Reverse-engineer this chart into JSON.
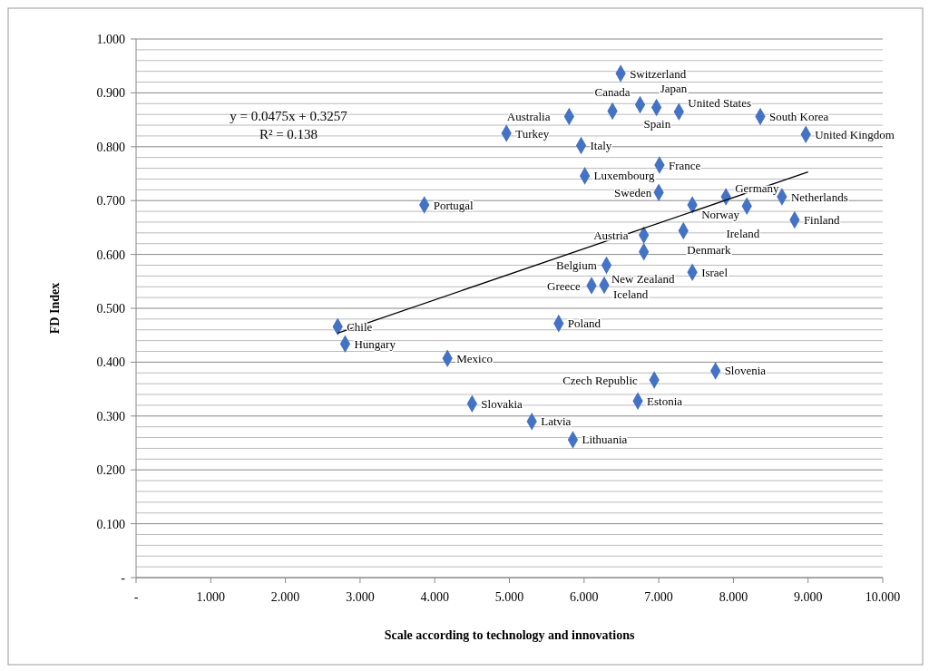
{
  "chart_data": {
    "type": "scatter",
    "xlabel": "Scale according to technology and innovations",
    "ylabel": "FD Index",
    "xlim": [
      0,
      10
    ],
    "ylim": [
      0,
      1
    ],
    "xticks": [
      {
        "value": 0,
        "label": "-"
      },
      {
        "value": 1,
        "label": "1.000"
      },
      {
        "value": 2,
        "label": "2.000"
      },
      {
        "value": 3,
        "label": "3.000"
      },
      {
        "value": 4,
        "label": "4.000"
      },
      {
        "value": 5,
        "label": "5.000"
      },
      {
        "value": 6,
        "label": "6.000"
      },
      {
        "value": 7,
        "label": "7.000"
      },
      {
        "value": 8,
        "label": "8.000"
      },
      {
        "value": 9,
        "label": "9.000"
      },
      {
        "value": 10,
        "label": "10.000"
      }
    ],
    "yticks": [
      {
        "value": 0,
        "label": "-"
      },
      {
        "value": 0.1,
        "label": "0.100"
      },
      {
        "value": 0.2,
        "label": "0.200"
      },
      {
        "value": 0.3,
        "label": "0.300"
      },
      {
        "value": 0.4,
        "label": "0.400"
      },
      {
        "value": 0.5,
        "label": "0.500"
      },
      {
        "value": 0.6,
        "label": "0.600"
      },
      {
        "value": 0.7,
        "label": "0.700"
      },
      {
        "value": 0.8,
        "label": "0.800"
      },
      {
        "value": 0.9,
        "label": "0.900"
      },
      {
        "value": 1,
        "label": "1.000"
      }
    ],
    "grid": "y",
    "marker": "diamond",
    "series": [
      {
        "color": "#4472c4",
        "x": [
          6.49,
          6.75,
          6.97,
          7.27,
          6.38,
          5.8,
          8.36,
          4.96,
          8.97,
          5.96,
          7.01,
          6.01,
          7.0,
          3.86,
          7.45,
          7.9,
          8.18,
          8.65,
          8.82,
          7.33,
          6.8,
          6.8,
          6.3,
          7.45,
          6.1,
          6.27,
          5.66,
          2.7,
          2.8,
          4.17,
          7.76,
          6.94,
          4.5,
          6.72,
          5.3,
          5.85
        ],
        "values": [
          0.936,
          0.878,
          0.873,
          0.865,
          0.866,
          0.856,
          0.856,
          0.825,
          0.823,
          0.802,
          0.766,
          0.746,
          0.715,
          0.692,
          0.692,
          0.707,
          0.69,
          0.707,
          0.664,
          0.644,
          0.636,
          0.605,
          0.58,
          0.567,
          0.542,
          0.543,
          0.472,
          0.466,
          0.434,
          0.407,
          0.384,
          0.367,
          0.323,
          0.328,
          0.29,
          0.256
        ]
      },
      {
        "type": "line",
        "marker": "none",
        "color": "#000000",
        "x": [
          2.7,
          9.0
        ],
        "values": [
          0.454,
          0.753
        ]
      }
    ],
    "annotations": [
      "y = 0.0475x + 0.3257",
      "R² = 0.138",
      {
        "text": "Switzerland",
        "x": 6.49,
        "y": 0.936
      },
      {
        "text": "Spain",
        "x": 6.75,
        "y": 0.878
      },
      {
        "text": "Japan",
        "x": 6.97,
        "y": 0.873
      },
      {
        "text": "United States",
        "x": 7.27,
        "y": 0.865
      },
      {
        "text": "Canada",
        "x": 6.38,
        "y": 0.866
      },
      {
        "text": "Australia",
        "x": 5.8,
        "y": 0.856
      },
      {
        "text": "South Korea",
        "x": 8.36,
        "y": 0.856
      },
      {
        "text": "Turkey",
        "x": 4.96,
        "y": 0.825
      },
      {
        "text": "United Kingdom",
        "x": 8.97,
        "y": 0.823
      },
      {
        "text": "Italy",
        "x": 5.96,
        "y": 0.802
      },
      {
        "text": "France",
        "x": 7.01,
        "y": 0.766
      },
      {
        "text": "Luxembourg",
        "x": 6.01,
        "y": 0.746
      },
      {
        "text": "Sweden",
        "x": 7.0,
        "y": 0.715
      },
      {
        "text": "Portugal",
        "x": 3.86,
        "y": 0.692
      },
      {
        "text": "Norway",
        "x": 7.45,
        "y": 0.692
      },
      {
        "text": "Germany",
        "x": 7.9,
        "y": 0.707
      },
      {
        "text": "Ireland",
        "x": 8.18,
        "y": 0.69
      },
      {
        "text": "Netherlands",
        "x": 8.65,
        "y": 0.707
      },
      {
        "text": "Finland",
        "x": 8.82,
        "y": 0.664
      },
      {
        "text": "Denmark",
        "x": 7.33,
        "y": 0.644
      },
      {
        "text": "Austria",
        "x": 6.8,
        "y": 0.636
      },
      {
        "text": "New Zealand",
        "x": 6.8,
        "y": 0.605
      },
      {
        "text": "Belgium",
        "x": 6.3,
        "y": 0.58
      },
      {
        "text": "Israel",
        "x": 7.45,
        "y": 0.567
      },
      {
        "text": "Greece",
        "x": 6.1,
        "y": 0.542
      },
      {
        "text": "Iceland",
        "x": 6.27,
        "y": 0.543
      },
      {
        "text": "Poland",
        "x": 5.66,
        "y": 0.472
      },
      {
        "text": "Chile",
        "x": 2.7,
        "y": 0.466
      },
      {
        "text": "Hungary",
        "x": 2.8,
        "y": 0.434
      },
      {
        "text": "Mexico",
        "x": 4.17,
        "y": 0.407
      },
      {
        "text": "Slovenia",
        "x": 7.76,
        "y": 0.384
      },
      {
        "text": "Czech Republic",
        "x": 6.94,
        "y": 0.367
      },
      {
        "text": "Slovakia",
        "x": 4.5,
        "y": 0.323
      },
      {
        "text": "Estonia",
        "x": 6.72,
        "y": 0.328
      },
      {
        "text": "Latvia",
        "x": 5.3,
        "y": 0.29
      },
      {
        "text": "Lithuania",
        "x": 5.85,
        "y": 0.256
      }
    ]
  }
}
